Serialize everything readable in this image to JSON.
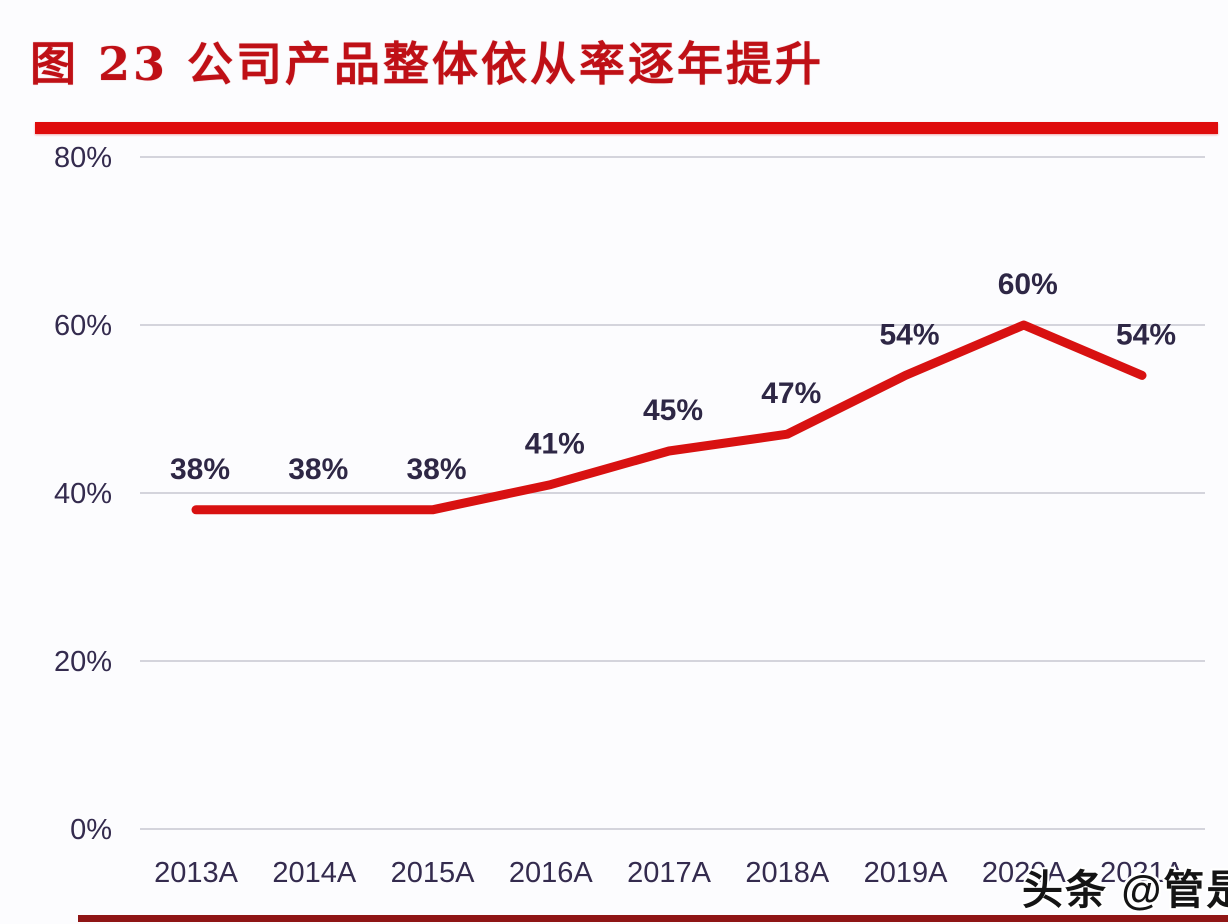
{
  "figure": {
    "title": "图 23 公司产品整体依从率逐年提升"
  },
  "watermark": {
    "text": "头条 @管是"
  },
  "colors": {
    "title_red": "#bf1016",
    "rule_red": "#df0c0c",
    "line_red": "#d81111",
    "bottom_rule_red": "#8f1515",
    "label_dark": "#2e2745",
    "gridline_gray": "#c7c7d1",
    "background": "#fcfcfe"
  },
  "chart_data": {
    "type": "line",
    "title": "图 23 公司产品整体依从率逐年提升",
    "categories": [
      "2013A",
      "2014A",
      "2015A",
      "2016A",
      "2017A",
      "2018A",
      "2019A",
      "2020A",
      "2021A"
    ],
    "values": [
      38,
      38,
      38,
      41,
      45,
      47,
      54,
      60,
      54
    ],
    "data_labels": [
      "38%",
      "38%",
      "38%",
      "41%",
      "45%",
      "47%",
      "54%",
      "60%",
      "54%"
    ],
    "yticks": [
      "0%",
      "20%",
      "40%",
      "60%",
      "80%"
    ],
    "ytick_values": [
      0,
      20,
      40,
      60,
      80
    ],
    "ylim": [
      0,
      80
    ],
    "xlabel": "",
    "ylabel": "",
    "grid": "horizontal",
    "legend": "none",
    "series_name": "整体依从率"
  }
}
